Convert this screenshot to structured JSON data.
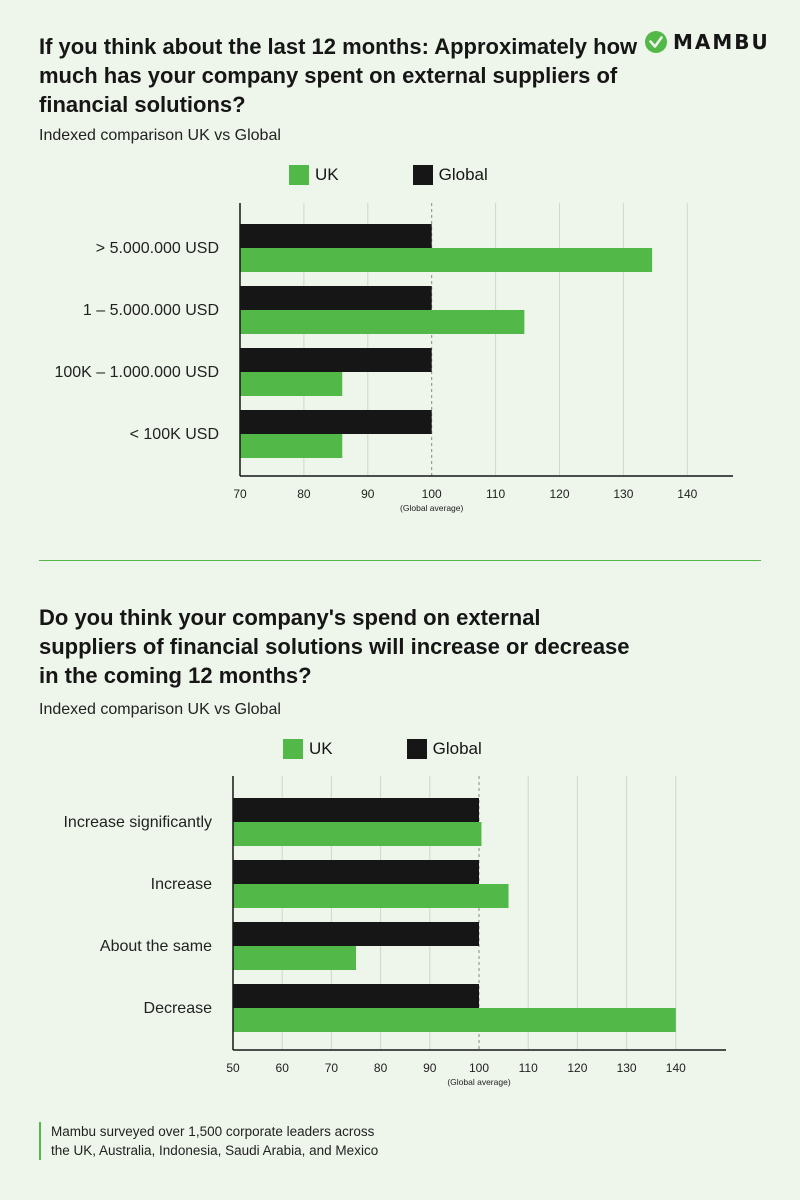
{
  "brand": {
    "name": "MAMBU",
    "green": "#52b848",
    "dark": "#161616",
    "background": "#eef5ea"
  },
  "chart_data": [
    {
      "type": "bar",
      "orientation": "horizontal",
      "title": "If you think about the last 12 months: Approximately how much has your company spent on external suppliers of financial solutions?",
      "subtitle": "Indexed comparison UK vs Global",
      "categories": [
        "> 5.000.000 USD",
        "1 – 5.000.000 USD",
        "100K – 1.000.000 USD",
        "< 100K USD"
      ],
      "series": [
        {
          "name": "Global",
          "color": "#161616",
          "values": [
            100,
            100,
            100,
            100
          ]
        },
        {
          "name": "UK",
          "color": "#52b848",
          "values": [
            134.5,
            114.5,
            86,
            86
          ]
        }
      ],
      "legend_order": [
        "UK",
        "Global"
      ],
      "xlim": [
        70,
        147
      ],
      "xticks": [
        70,
        80,
        90,
        100,
        110,
        120,
        130,
        140
      ],
      "reference_line": {
        "value": 100,
        "label": "(Global average)"
      },
      "grid": "vertical"
    },
    {
      "type": "bar",
      "orientation": "horizontal",
      "title": "Do you think your company's spend on external suppliers of financial solutions will increase or decrease in the coming 12 months?",
      "subtitle": "Indexed comparison UK vs Global",
      "categories": [
        "Increase significantly",
        "Increase",
        "About the same",
        "Decrease"
      ],
      "series": [
        {
          "name": "Global",
          "color": "#161616",
          "values": [
            100,
            100,
            100,
            100
          ]
        },
        {
          "name": "UK",
          "color": "#52b848",
          "values": [
            100.5,
            106,
            75,
            140
          ]
        }
      ],
      "legend_order": [
        "UK",
        "Global"
      ],
      "xlim": [
        50,
        149
      ],
      "xticks": [
        50,
        60,
        70,
        80,
        90,
        100,
        110,
        120,
        130,
        140
      ],
      "reference_line": {
        "value": 100,
        "label": "(Global average)"
      },
      "grid": "vertical"
    }
  ],
  "footnote": {
    "line1": "Mambu surveyed over 1,500 corporate leaders across",
    "line2": "the UK, Australia, Indonesia, Saudi Arabia, and Mexico"
  }
}
